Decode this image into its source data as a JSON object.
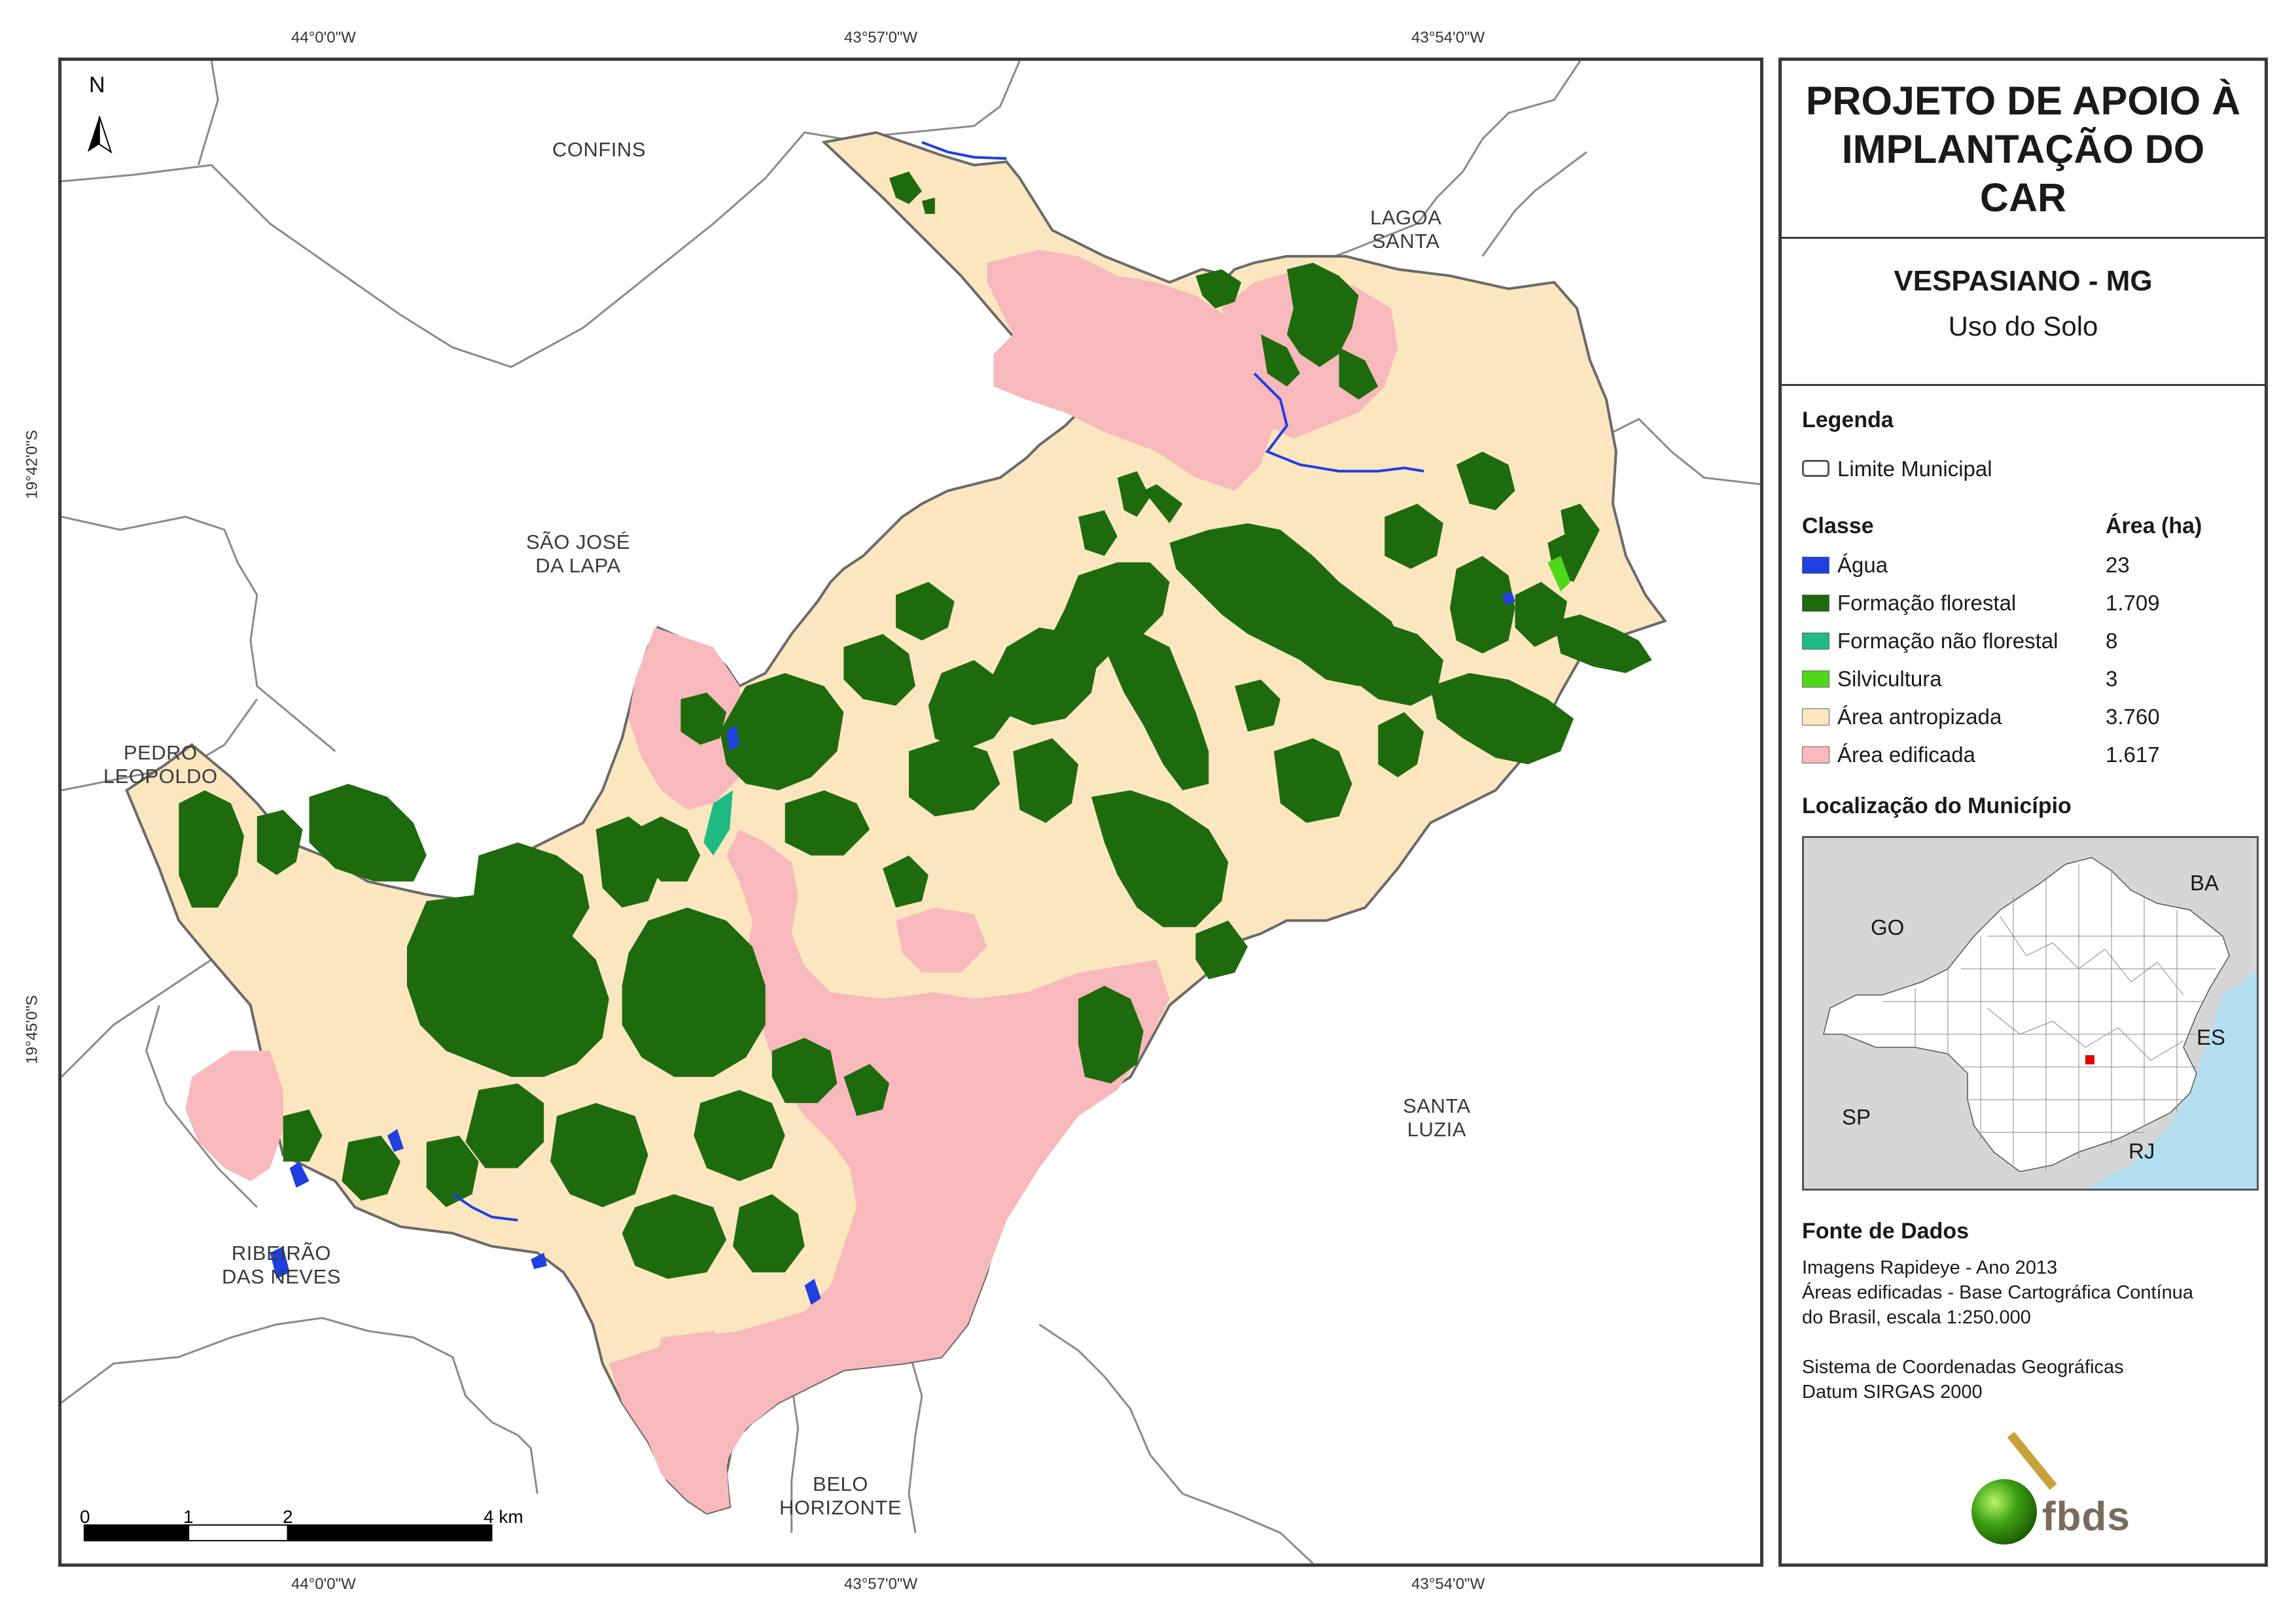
{
  "coords": {
    "top": [
      "44°0'0\"W",
      "43°57'0\"W",
      "43°54'0\"W"
    ],
    "bottom": [
      "44°0'0\"W",
      "43°57'0\"W",
      "43°54'0\"W"
    ],
    "left": [
      "19°42'0\"S",
      "19°45'0\"S"
    ]
  },
  "north": "N",
  "places": {
    "confins": "CONFINS",
    "lagoa_santa_1": "LAGOA",
    "lagoa_santa_2": "SANTA",
    "sao_jose_1": "SÃO JOSÉ",
    "sao_jose_2": "DA LAPA",
    "pedro_1": "PEDRO",
    "pedro_2": "LEOPOLDO",
    "santa_luzia_1": "SANTA",
    "santa_luzia_2": "LUZIA",
    "ribeirao_1": "RIBEIRÃO",
    "ribeirao_2": "DAS NEVES",
    "bh_1": "BELO",
    "bh_2": "HORIZONTE"
  },
  "scale": {
    "ticks": [
      "0",
      "1",
      "2",
      "4 km"
    ]
  },
  "panel": {
    "title": "PROJETO DE APOIO À IMPLANTAÇÃO DO CAR",
    "municipality": "VESPASIANO - MG",
    "theme": "Uso do Solo",
    "legend_title": "Legenda",
    "boundary_label": "Limite Municipal",
    "class_header": "Classe",
    "area_header": "Área (ha)",
    "classes": [
      {
        "label": "Água",
        "area": "23",
        "color": "#1f3fe0"
      },
      {
        "label": "Formação florestal",
        "area": "1.709",
        "color": "#1e6b0e"
      },
      {
        "label": "Formação não florestal",
        "area": "8",
        "color": "#1fba83"
      },
      {
        "label": "Silvicultura",
        "area": "3",
        "color": "#4fd81a"
      },
      {
        "label": "Área antropizada",
        "area": "3.760",
        "color": "#fbe6c0"
      },
      {
        "label": "Área edificada",
        "area": "1.617",
        "color": "#f8b9bc"
      }
    ],
    "location_title": "Localização do Município",
    "states": {
      "go": "GO",
      "ba": "BA",
      "es": "ES",
      "sp": "SP",
      "rj": "RJ"
    },
    "source_title": "Fonte de Dados",
    "source_lines": [
      "Imagens Rapideye - Ano 2013",
      "Áreas edificadas - Base Cartográfica Contínua",
      "do Brasil, escala 1:250.000",
      "Sistema de Coordenadas Geográficas",
      "Datum SIRGAS 2000"
    ],
    "logo_text": "fbds"
  }
}
